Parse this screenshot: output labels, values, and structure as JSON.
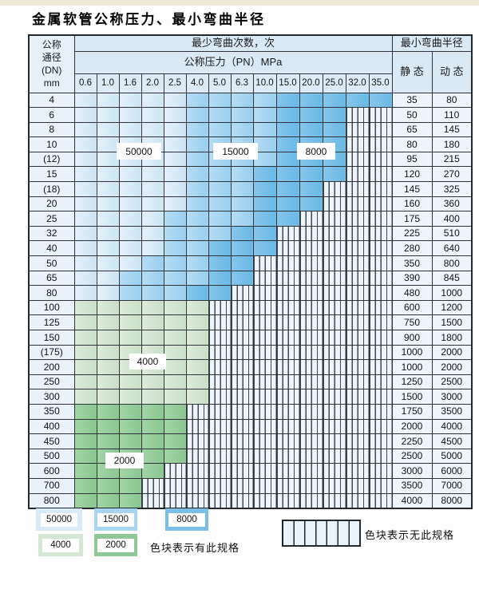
{
  "title": "金属软管公称压力、最小弯曲半径",
  "table": {
    "header": {
      "dn_lines": [
        "公称",
        "通径",
        "(DN)",
        "mm"
      ],
      "bend_count_label": "最少弯曲次数，次",
      "pressure_label": "公称压力（PN）MPa",
      "radius_label": "最小弯曲半径",
      "static_label": "静 态",
      "dynamic_label": "动 态",
      "pressures": [
        "0.6",
        "1.0",
        "1.6",
        "2.0",
        "2.5",
        "4.0",
        "5.0",
        "6.3",
        "10.0",
        "15.0",
        "20.0",
        "25.0",
        "32.0",
        "35.0"
      ]
    },
    "cell_code_meaning": {
      "L": "50000次色块",
      "M": "15000次色块",
      "D": "8000次色块",
      "G": "4000次色块",
      "E": "2000次色块",
      "X": "无此规格(竖线填充)"
    },
    "rows": [
      {
        "dn": "4",
        "cells": "LLLLLMMMMDDDDD",
        "static": "35",
        "dynamic": "80"
      },
      {
        "dn": "6",
        "cells": "LLLLLMMMMDDDXX",
        "static": "50",
        "dynamic": "110"
      },
      {
        "dn": "8",
        "cells": "LLLLLMMMMDDDXX",
        "static": "65",
        "dynamic": "145"
      },
      {
        "dn": "10",
        "cells": "LLLLLMMMMDDDXX",
        "static": "80",
        "dynamic": "180"
      },
      {
        "dn": "(12)",
        "cells": "LLLLLMMMMDDDXX",
        "static": "95",
        "dynamic": "215"
      },
      {
        "dn": "15",
        "cells": "LLLLLMMMDDDDXX",
        "static": "120",
        "dynamic": "270"
      },
      {
        "dn": "(18)",
        "cells": "LLLLLMMMDDDXXX",
        "static": "145",
        "dynamic": "325"
      },
      {
        "dn": "20",
        "cells": "LLLLLMMMDDDXXX",
        "static": "160",
        "dynamic": "360"
      },
      {
        "dn": "25",
        "cells": "LLLLMMMMDDXXXX",
        "static": "175",
        "dynamic": "400"
      },
      {
        "dn": "32",
        "cells": "LLLLMMMDDXXXXX",
        "static": "225",
        "dynamic": "510"
      },
      {
        "dn": "40",
        "cells": "LLLLMMDDDXXXXX",
        "static": "280",
        "dynamic": "640"
      },
      {
        "dn": "50",
        "cells": "LLLMMMDDXXXXXX",
        "static": "350",
        "dynamic": "800"
      },
      {
        "dn": "65",
        "cells": "LLMMMMDDXXXXXX",
        "static": "390",
        "dynamic": "845"
      },
      {
        "dn": "80",
        "cells": "LLMMMDDXXXXXXX",
        "static": "480",
        "dynamic": "1000"
      },
      {
        "dn": "100",
        "cells": "GGGGGGXXXXXXXX",
        "static": "600",
        "dynamic": "1200"
      },
      {
        "dn": "125",
        "cells": "GGGGGGXXXXXXXX",
        "static": "750",
        "dynamic": "1500"
      },
      {
        "dn": "150",
        "cells": "GGGGGGXXXXXXXX",
        "static": "900",
        "dynamic": "1800"
      },
      {
        "dn": "(175)",
        "cells": "GGGGGGXXXXXXXX",
        "static": "1000",
        "dynamic": "2000"
      },
      {
        "dn": "200",
        "cells": "GGGGGGXXXXXXXX",
        "static": "1000",
        "dynamic": "2000"
      },
      {
        "dn": "250",
        "cells": "GGGGGGXXXXXXXX",
        "static": "1250",
        "dynamic": "2500"
      },
      {
        "dn": "300",
        "cells": "GGGGGGXXXXXXXX",
        "static": "1500",
        "dynamic": "3000"
      },
      {
        "dn": "350",
        "cells": "EEEEEXXXXXXXXX",
        "static": "1750",
        "dynamic": "3500"
      },
      {
        "dn": "400",
        "cells": "EEEEEXXXXXXXXX",
        "static": "2000",
        "dynamic": "4000"
      },
      {
        "dn": "450",
        "cells": "EEEEEXXXXXXXXX",
        "static": "2250",
        "dynamic": "4500"
      },
      {
        "dn": "500",
        "cells": "EEEEEXXXXXXXXX",
        "static": "2500",
        "dynamic": "5000"
      },
      {
        "dn": "600",
        "cells": "EEEEXXXXXXXXXX",
        "static": "3000",
        "dynamic": "6000"
      },
      {
        "dn": "700",
        "cells": "EEEXXXXXXXXXXX",
        "static": "3500",
        "dynamic": "7000"
      },
      {
        "dn": "800",
        "cells": "EEEXXXXXXXXXXX",
        "static": "4000",
        "dynamic": "8000"
      }
    ]
  },
  "overlays": [
    "50000",
    "15000",
    "8000",
    "4000",
    "2000"
  ],
  "legend": {
    "swatches": [
      {
        "label": "50000",
        "color": "#d6eaf8"
      },
      {
        "label": "15000",
        "color": "#a7d4f1"
      },
      {
        "label": "8000",
        "color": "#79c0e9"
      },
      {
        "label": "4000",
        "color": "#d4e7d2"
      },
      {
        "label": "2000",
        "color": "#8dc994"
      }
    ],
    "has_spec_text": "色块表示有此规格",
    "no_spec_text": "色块表示无此规格"
  },
  "colors": {
    "blue_50000": "#d6eaf8",
    "blue_15000": "#a7d4f1",
    "blue_8000": "#79c0e9",
    "green_4000": "#d4e7d2",
    "green_2000": "#8dc994",
    "no_spec_bg": "#edf4fb",
    "grid": "#2f3338",
    "header_bg": "#d9e9f6",
    "top_strip": "#efe8d4"
  }
}
